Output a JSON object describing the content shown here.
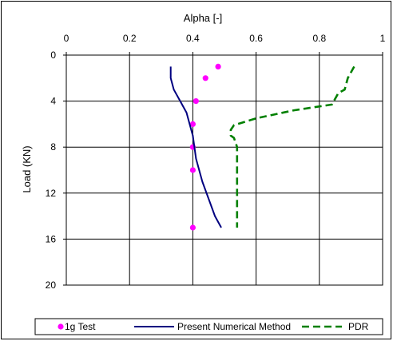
{
  "chart_data": {
    "type": "line",
    "xlabel": "Alpha [-]",
    "ylabel": "Load (KN)",
    "xlim": [
      0,
      1
    ],
    "ylim": [
      0,
      20
    ],
    "x_axis_position": "top",
    "y_axis_inverted": true,
    "xticks": [
      "0",
      "0.2",
      "0.4",
      "0.6",
      "0.8",
      "1"
    ],
    "yticks": [
      "0",
      "4",
      "8",
      "12",
      "16",
      "20"
    ],
    "grid": true,
    "legend_position": "bottom",
    "series": [
      {
        "name": "1g Test",
        "style": "markers",
        "color": "#ff00ff",
        "x": [
          0.48,
          0.44,
          0.41,
          0.4,
          0.4,
          0.4,
          0.4
        ],
        "y": [
          1,
          2,
          4,
          6,
          8,
          10,
          15
        ]
      },
      {
        "name": "Present Numerical Method",
        "style": "solid",
        "color": "#000080",
        "x": [
          0.33,
          0.33,
          0.34,
          0.36,
          0.38,
          0.39,
          0.4,
          0.41,
          0.43,
          0.45,
          0.47,
          0.49
        ],
        "y": [
          1,
          2,
          3,
          4,
          5,
          6,
          7,
          9,
          11,
          12.5,
          14,
          15
        ]
      },
      {
        "name": "PDR",
        "style": "dashed",
        "color": "#008000",
        "x": [
          0.91,
          0.89,
          0.88,
          0.86,
          0.84,
          0.72,
          0.6,
          0.53,
          0.52,
          0.52,
          0.53,
          0.54,
          0.54,
          0.54
        ],
        "y": [
          1,
          2,
          3,
          3.3,
          4.3,
          4.8,
          5.5,
          6.1,
          6.5,
          7,
          7.2,
          8,
          12,
          15
        ]
      }
    ]
  }
}
